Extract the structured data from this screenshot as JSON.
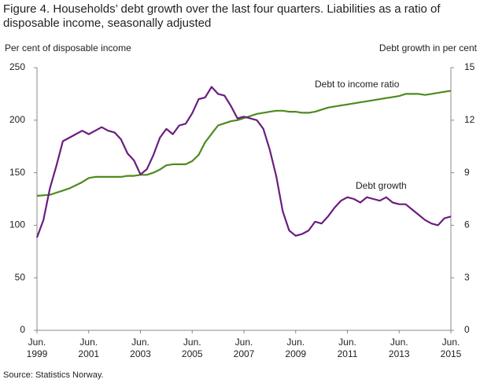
{
  "chart_data": {
    "type": "line",
    "title": "Figure 4. Households’ debt growth over the last four quarters. Liabilities as a ratio of disposable income, seasonally adjusted",
    "ylabel": "Per cent of disposable income",
    "y2label": "Debt growth in per cent",
    "source": "Source: Statistics Norway.",
    "categories": [
      "Jun. 1999",
      null,
      null,
      null,
      null,
      null,
      null,
      null,
      "Jun. 2001",
      null,
      null,
      null,
      null,
      null,
      null,
      null,
      "Jun. 2003",
      null,
      null,
      null,
      null,
      null,
      null,
      null,
      "Jun. 2005",
      null,
      null,
      null,
      null,
      null,
      null,
      null,
      "Jun. 2007",
      null,
      null,
      null,
      null,
      null,
      null,
      null,
      "Jun. 2009",
      null,
      null,
      null,
      null,
      null,
      null,
      null,
      "Jun. 2011",
      null,
      null,
      null,
      null,
      null,
      null,
      null,
      "Jun. 2013",
      null,
      null,
      null,
      null,
      null,
      null,
      null,
      "Jun. 2015"
    ],
    "series": [
      {
        "name": "Debt to income ratio",
        "color": "#4e8a1e",
        "axis": "y",
        "values": [
          128,
          128.5,
          129,
          131,
          133,
          135,
          138,
          141,
          145,
          146,
          146,
          146,
          146,
          146,
          147,
          147,
          148,
          148,
          150,
          153,
          157,
          158,
          158,
          158,
          161,
          167,
          179,
          187,
          195,
          197,
          199,
          200,
          202,
          204,
          206,
          207,
          208,
          209,
          209,
          208,
          208,
          207,
          207,
          208,
          210,
          212,
          213,
          214,
          215,
          216,
          217,
          218,
          219,
          220,
          221,
          222,
          223,
          225,
          225,
          225,
          224,
          225,
          226,
          227,
          228
        ]
      },
      {
        "name": "Debt growth",
        "color": "#6b1d7e",
        "axis": "y2",
        "values": [
          5.3,
          6.3,
          8.1,
          9.4,
          10.8,
          11.0,
          11.2,
          11.4,
          11.2,
          11.4,
          11.6,
          11.4,
          11.3,
          10.9,
          10.1,
          9.7,
          8.9,
          9.2,
          10.0,
          11.0,
          11.5,
          11.2,
          11.7,
          11.8,
          12.4,
          13.2,
          13.3,
          13.9,
          13.5,
          13.4,
          12.8,
          12.1,
          12.2,
          12.1,
          12.0,
          11.5,
          10.3,
          8.8,
          6.8,
          5.7,
          5.4,
          5.5,
          5.7,
          6.2,
          6.1,
          6.5,
          7.0,
          7.4,
          7.6,
          7.5,
          7.3,
          7.6,
          7.5,
          7.4,
          7.6,
          7.3,
          7.2,
          7.2,
          6.9,
          6.6,
          6.3,
          6.1,
          6.0,
          6.4,
          6.5
        ]
      }
    ],
    "ylim": [
      0,
      250
    ],
    "yticks": [
      0,
      50,
      100,
      150,
      200,
      250
    ],
    "y2lim": [
      0,
      15
    ],
    "y2ticks": [
      0,
      3,
      6,
      9,
      12,
      15
    ]
  }
}
